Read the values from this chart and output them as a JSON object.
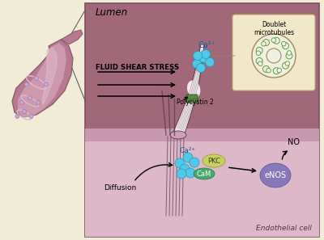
{
  "bg_cream": "#f0ecd8",
  "bg_lumen": "#a06878",
  "bg_cell": "#ddb8c8",
  "membrane_color": "#c090a8",
  "cilium_white": "#f0e8ec",
  "cilium_line": "#5a3848",
  "ca_color": "#50c8e8",
  "ca_border": "#2898b8",
  "pkc_color": "#c8d060",
  "cam_color": "#48a868",
  "enos_color": "#8878b8",
  "polycystin_color": "#5a8840",
  "box_bg": "#f0e8c8",
  "box_border": "#c0a870",
  "mt_color": "#5a9840",
  "mt_bg": "#f0f0e0",
  "vessel_outer": "#b87890",
  "vessel_inner": "#cc9aac",
  "vessel_hl": "#ddb8c8",
  "zoom_line": "#505050",
  "lumen_text": "Lumen",
  "fluid_text": "FLUID SHEAR STRESS",
  "poly2_text": "Polycystin 2",
  "doublet_text": "Doublet\nmicrotubules",
  "ca_text": "Ca²⁺",
  "diffusion_text": "Diffusion",
  "pkc_text": "PKC",
  "cam_text": "CaM",
  "enos_text": "eNOS",
  "no_text": "NO",
  "endo_text": "Endothelial cell",
  "main_border": "#7a5060"
}
